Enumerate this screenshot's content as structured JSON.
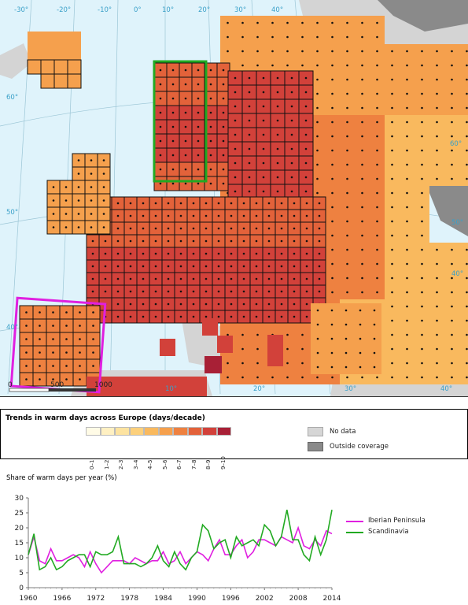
{
  "map": {
    "lat_labels": [
      "60°",
      "50°",
      "40°",
      "60°",
      "50°",
      "40°"
    ],
    "lon_labels": [
      "-30°",
      "-20°",
      "-10°",
      "0°",
      "10°",
      "20°",
      "30°",
      "40°",
      "20°",
      "30°",
      "40°",
      "10°"
    ],
    "scale_labels": [
      "0",
      "500",
      "1000"
    ],
    "regions": [
      {
        "name": "Scandinavia",
        "color": "#22aa22"
      },
      {
        "name": "Iberian Peninsula",
        "color": "#e020e0"
      }
    ]
  },
  "legend": {
    "title": "Trends in warm days across Europe (days/decade)",
    "classes": [
      {
        "label": "0–1",
        "color": "#fffbe6"
      },
      {
        "label": "1–2",
        "color": "#fff0c2"
      },
      {
        "label": "2–3",
        "color": "#fde3a0"
      },
      {
        "label": "3–4",
        "color": "#fcd07c"
      },
      {
        "label": "4–5",
        "color": "#f9b95e"
      },
      {
        "label": "5–6",
        "color": "#f5a04d"
      },
      {
        "label": "6–7",
        "color": "#ee8140"
      },
      {
        "label": "7–8",
        "color": "#e3623a"
      },
      {
        "label": "8–9",
        "color": "#d2413a"
      },
      {
        "label": "9–10",
        "color": "#a82036"
      }
    ],
    "no_data": {
      "label": "No data",
      "color": "#d6d6d6"
    },
    "outside": {
      "label": "Outside coverage",
      "color": "#8a8a8a"
    }
  },
  "chart": {
    "title": "Share of warm days per year (%)"
  },
  "chart_data": {
    "type": "line",
    "title": "Share of warm days per year (%)",
    "ylim": [
      0,
      30
    ],
    "yticks": [
      0,
      5,
      10,
      15,
      20,
      25,
      30
    ],
    "xticks": [
      1960,
      1966,
      1972,
      1978,
      1984,
      1990,
      1996,
      2002,
      2008,
      2014
    ],
    "x": [
      1960,
      1961,
      1962,
      1963,
      1964,
      1965,
      1966,
      1967,
      1968,
      1969,
      1970,
      1971,
      1972,
      1973,
      1974,
      1975,
      1976,
      1977,
      1978,
      1979,
      1980,
      1981,
      1982,
      1983,
      1984,
      1985,
      1986,
      1987,
      1988,
      1989,
      1990,
      1991,
      1992,
      1993,
      1994,
      1995,
      1996,
      1997,
      1998,
      1999,
      2000,
      2001,
      2002,
      2003,
      2004,
      2005,
      2006,
      2007,
      2008,
      2009,
      2010,
      2011,
      2012,
      2013,
      2014
    ],
    "series": [
      {
        "name": "Iberian Peninsula",
        "color": "#e020e0",
        "values": [
          11,
          17,
          9,
          8,
          13,
          9,
          9,
          10,
          11,
          10,
          7,
          12,
          8,
          5,
          7,
          9,
          9,
          9,
          8,
          10,
          9,
          8,
          9,
          9,
          12,
          8,
          9,
          12,
          8,
          10,
          12,
          11,
          9,
          13,
          16,
          11,
          11,
          14,
          16,
          10,
          12,
          16,
          16,
          15,
          14,
          17,
          16,
          15,
          20,
          14,
          13,
          16,
          14,
          19,
          18
        ]
      },
      {
        "name": "Scandinavia",
        "color": "#22aa22",
        "values": [
          11,
          18,
          6,
          7,
          10,
          6,
          7,
          9,
          10,
          11,
          11,
          7,
          12,
          11,
          11,
          12,
          17,
          8,
          8,
          8,
          7,
          8,
          10,
          14,
          9,
          7,
          12,
          8,
          6,
          10,
          12,
          21,
          19,
          13,
          15,
          16,
          10,
          17,
          14,
          15,
          16,
          14,
          21,
          19,
          14,
          17,
          26,
          16,
          16,
          11,
          9,
          17,
          11,
          16,
          26
        ]
      }
    ]
  }
}
